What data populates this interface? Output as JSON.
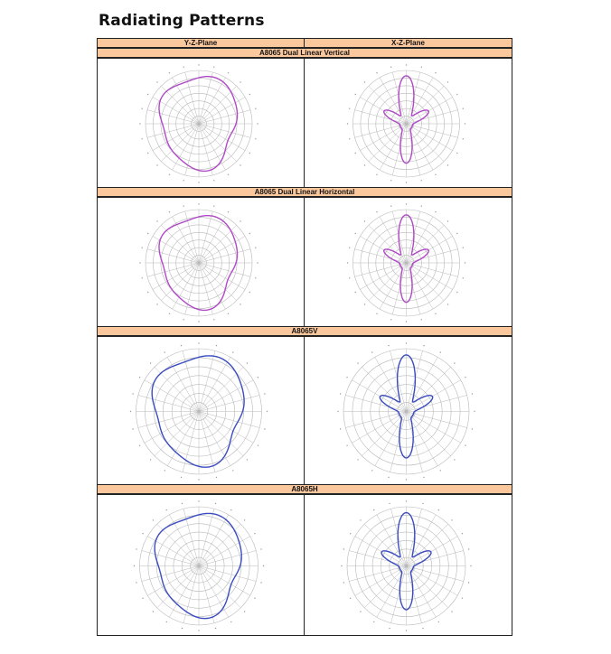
{
  "page": {
    "title": "Radiating Patterns"
  },
  "table": {
    "columns": [
      "Y-Z-Plane",
      "X-Z-Plane"
    ],
    "sections": [
      {
        "label": "A8065 Dual Linear Vertical",
        "color": "#b04ac7",
        "yz": "omni",
        "xz": "lobed"
      },
      {
        "label": "A8065 Dual Linear Horizontal",
        "color": "#b04ac7",
        "yz": "omni",
        "xz": "lobed"
      },
      {
        "label": "A8065V",
        "color": "#3a4cc0",
        "yz": "omni",
        "xz": "lobed"
      },
      {
        "label": "A8065H",
        "color": "#3a4cc0",
        "yz": "omni",
        "xz": "lobed"
      }
    ]
  }
}
